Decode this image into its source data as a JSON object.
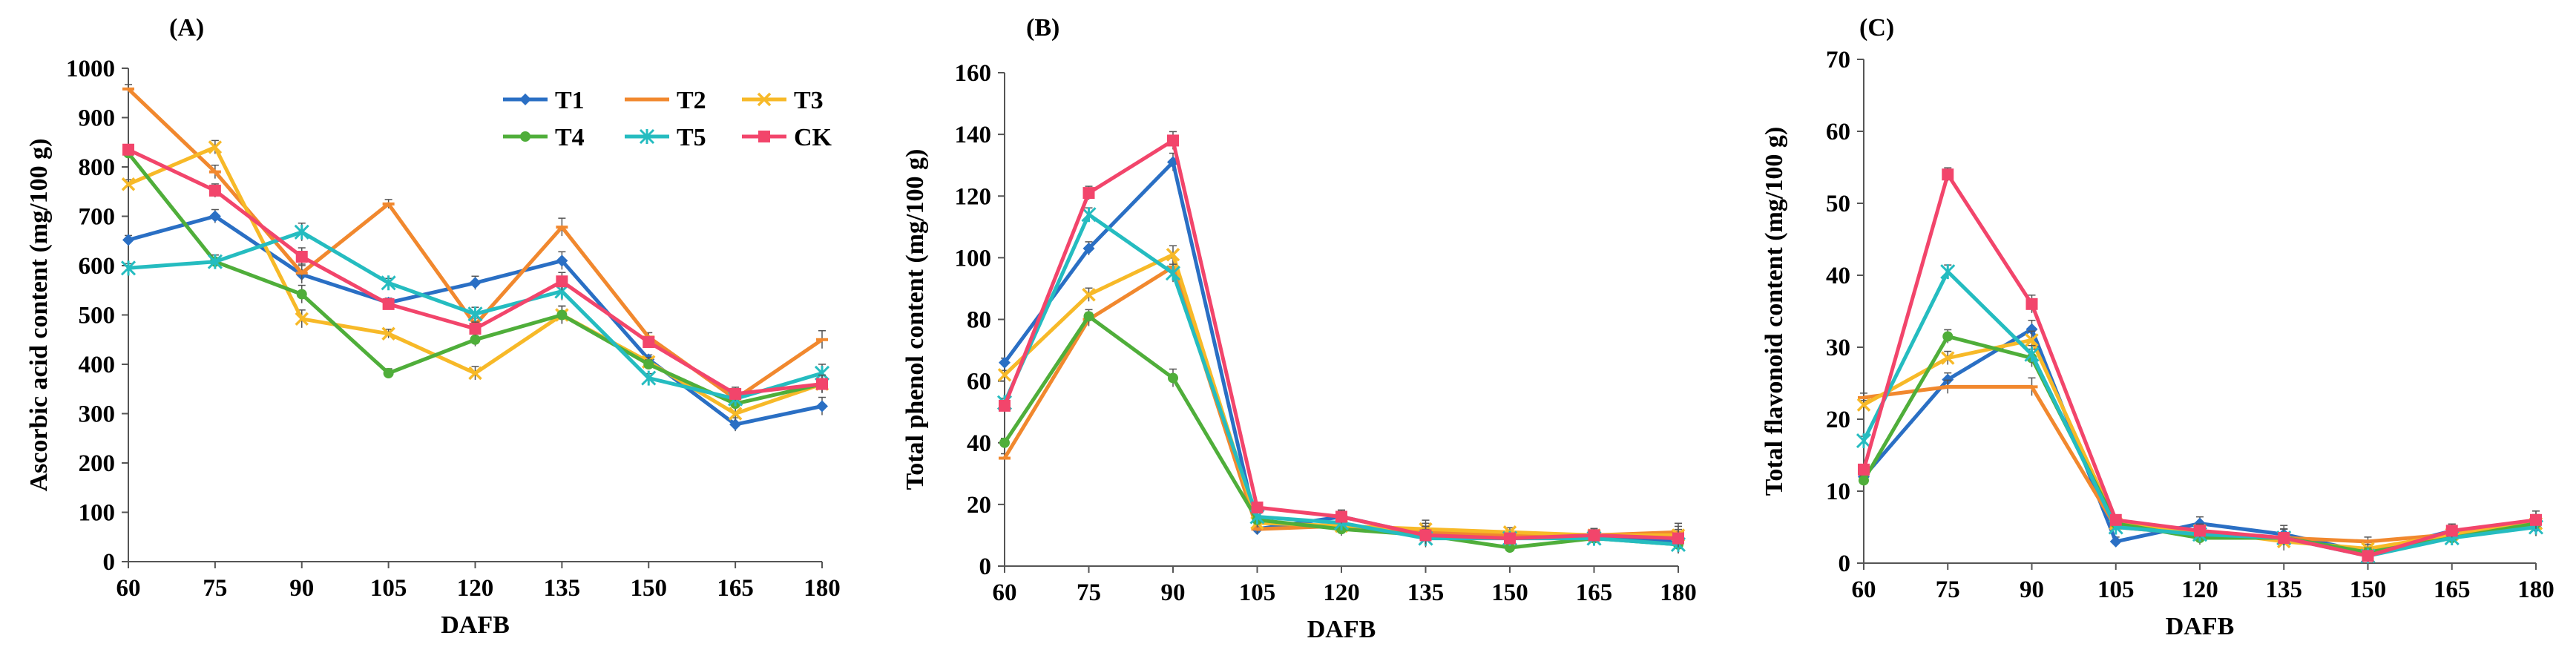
{
  "colors": {
    "T1": "#2a6fc4",
    "T2": "#f1882e",
    "T3": "#f7b928",
    "T4": "#4fae3a",
    "T5": "#25bcc0",
    "CK": "#f2456b"
  },
  "chart_data": [
    {
      "type": "line",
      "panel_label": "(A)",
      "xlabel": "DAFB",
      "ylabel": "Ascorbic acid content (mg/100 g)",
      "x": [
        60,
        75,
        90,
        105,
        120,
        135,
        150,
        165,
        180
      ],
      "x_tick_labels": [
        "60",
        "75",
        "90",
        "105",
        "120",
        "135",
        "150",
        "165",
        "180"
      ],
      "ylim": [
        0,
        1000
      ],
      "y_ticks": [
        0,
        100,
        200,
        300,
        400,
        500,
        600,
        700,
        800,
        900,
        1000
      ],
      "y_tick_labels": [
        "0",
        "100",
        "200",
        "300",
        "400",
        "500",
        "600",
        "700",
        "800",
        "900",
        "1000"
      ],
      "legend": {
        "position": "top-right",
        "entries": [
          "T1",
          "T2",
          "T3",
          "T4",
          "T5",
          "CK"
        ]
      },
      "series": [
        {
          "name": "T1",
          "values": [
            652,
            700,
            582,
            525,
            565,
            610,
            410,
            278,
            315
          ]
        },
        {
          "name": "T2",
          "values": [
            958,
            790,
            585,
            725,
            480,
            678,
            455,
            330,
            450
          ]
        },
        {
          "name": "T3",
          "values": [
            765,
            840,
            492,
            462,
            382,
            500,
            405,
            300,
            360
          ]
        },
        {
          "name": "T4",
          "values": [
            828,
            608,
            542,
            382,
            450,
            500,
            400,
            320,
            360
          ]
        },
        {
          "name": "T5",
          "values": [
            595,
            608,
            668,
            565,
            502,
            548,
            372,
            330,
            382
          ]
        },
        {
          "name": "CK",
          "values": [
            835,
            752,
            618,
            522,
            472,
            568,
            445,
            340,
            360
          ]
        }
      ]
    },
    {
      "type": "line",
      "panel_label": "(B)",
      "xlabel": "DAFB",
      "ylabel": "Total phenol content (mg/100 g)",
      "x": [
        60,
        75,
        90,
        105,
        120,
        135,
        150,
        165,
        180
      ],
      "x_tick_labels": [
        "60",
        "75",
        "90",
        "105",
        "120",
        "135",
        "150",
        "165",
        "180"
      ],
      "ylim": [
        0,
        160
      ],
      "y_ticks": [
        0,
        20,
        40,
        60,
        80,
        100,
        120,
        140,
        160
      ],
      "y_tick_labels": [
        "0",
        "20",
        "40",
        "60",
        "80",
        "100",
        "120",
        "140",
        "160"
      ],
      "series": [
        {
          "name": "T1",
          "values": [
            66,
            103,
            131,
            12,
            16,
            10,
            10,
            9,
            8
          ]
        },
        {
          "name": "T2",
          "values": [
            35,
            80,
            97,
            12,
            13,
            11,
            10,
            10,
            11
          ]
        },
        {
          "name": "T3",
          "values": [
            62,
            88,
            101,
            14,
            13,
            12,
            11,
            10,
            10
          ]
        },
        {
          "name": "T4",
          "values": [
            40,
            81,
            61,
            15,
            12,
            10,
            6,
            9,
            7
          ]
        },
        {
          "name": "T5",
          "values": [
            53,
            114,
            95,
            16,
            14,
            9,
            9,
            9,
            7
          ]
        },
        {
          "name": "CK",
          "values": [
            52,
            121,
            138,
            19,
            16,
            10,
            9,
            10,
            9
          ]
        }
      ]
    },
    {
      "type": "line",
      "panel_label": "(C)",
      "xlabel": "DAFB",
      "ylabel": "Total flavonoid content (mg/100 g)",
      "x": [
        60,
        75,
        90,
        105,
        120,
        135,
        150,
        165,
        180
      ],
      "x_tick_labels": [
        "60",
        "75",
        "90",
        "105",
        "120",
        "135",
        "150",
        "165",
        "180"
      ],
      "ylim": [
        0,
        70
      ],
      "y_ticks": [
        0,
        10,
        20,
        30,
        40,
        50,
        60,
        70
      ],
      "y_tick_labels": [
        "0",
        "10",
        "20",
        "30",
        "40",
        "50",
        "60",
        "70"
      ],
      "series": [
        {
          "name": "T1",
          "values": [
            12,
            25.5,
            32.5,
            3,
            5.5,
            4,
            1.5,
            4.5,
            5
          ]
        },
        {
          "name": "T2",
          "values": [
            23,
            24.5,
            24.5,
            5,
            4,
            3.5,
            3,
            4,
            6
          ]
        },
        {
          "name": "T3",
          "values": [
            22,
            28.5,
            31,
            5.5,
            4.5,
            3,
            2,
            4,
            5.5
          ]
        },
        {
          "name": "T4",
          "values": [
            11.5,
            31.5,
            28.5,
            5.5,
            3.5,
            3.5,
            1.5,
            3.5,
            5.5
          ]
        },
        {
          "name": "T5",
          "values": [
            17,
            40.5,
            29,
            5,
            4,
            3.5,
            1,
            3.5,
            5
          ]
        },
        {
          "name": "CK",
          "values": [
            13,
            54,
            36,
            6,
            4.5,
            3.5,
            1,
            4.5,
            6
          ]
        }
      ]
    }
  ]
}
